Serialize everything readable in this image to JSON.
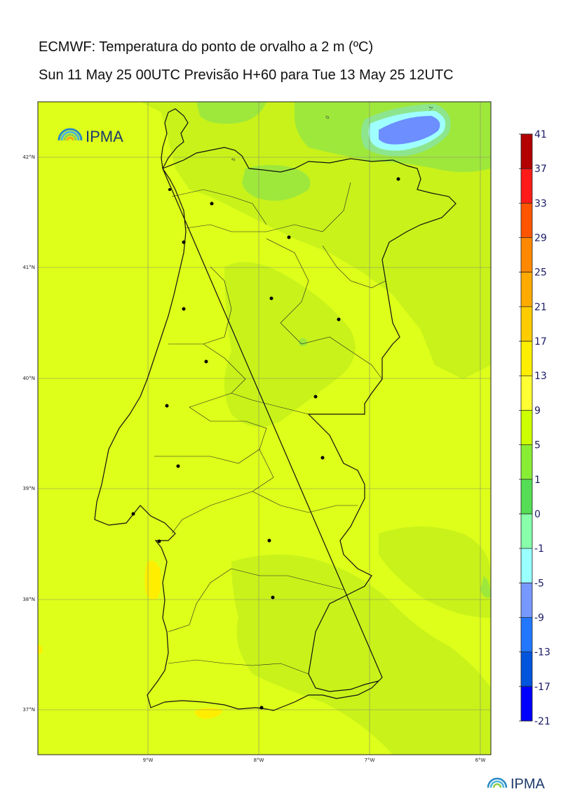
{
  "title_line1": "ECMWF: Temperatura do ponto de orvalho a 2 m (ºC)",
  "title_line2": "Sun 11 May 25 00UTC Previsão H+60 para Tue 13 May 25 12UTC",
  "logo_text": "IPMA",
  "footer_logo_text": "IPMA",
  "lat_labels": [
    "42°N",
    "41°N",
    "40°N",
    "39°N",
    "38°N",
    "37°N"
  ],
  "lon_labels": [
    "9°W",
    "8°W",
    "7°W",
    "6°W"
  ],
  "contour_labels": [
    "-1",
    "0",
    "5"
  ],
  "colorbar": {
    "labels": [
      "41",
      "37",
      "33",
      "29",
      "25",
      "21",
      "17",
      "13",
      "9",
      "5",
      "1",
      "0",
      "-1",
      "-5",
      "-9",
      "-13",
      "-17",
      "-21"
    ],
    "colors": [
      "#b30000",
      "#ff1a1a",
      "#ff5500",
      "#ff8800",
      "#ffaa00",
      "#ffcc00",
      "#ffee00",
      "#ffff33",
      "#ccff00",
      "#88ee33",
      "#55dd55",
      "#88ffaa",
      "#99ffff",
      "#7799ff",
      "#2277ff",
      "#0055dd",
      "#0000ff",
      "#8800ff"
    ]
  },
  "map_colors": {
    "background": "#ddff1a",
    "band_5_9": "#c8f21a",
    "band_1_5": "#9ee83c",
    "band_0_1": "#8de58e",
    "band_m1_0": "#9fffff",
    "band_m5_m1": "#6d8eff",
    "band_13_17": "#ffee00"
  },
  "city_count": 18
}
